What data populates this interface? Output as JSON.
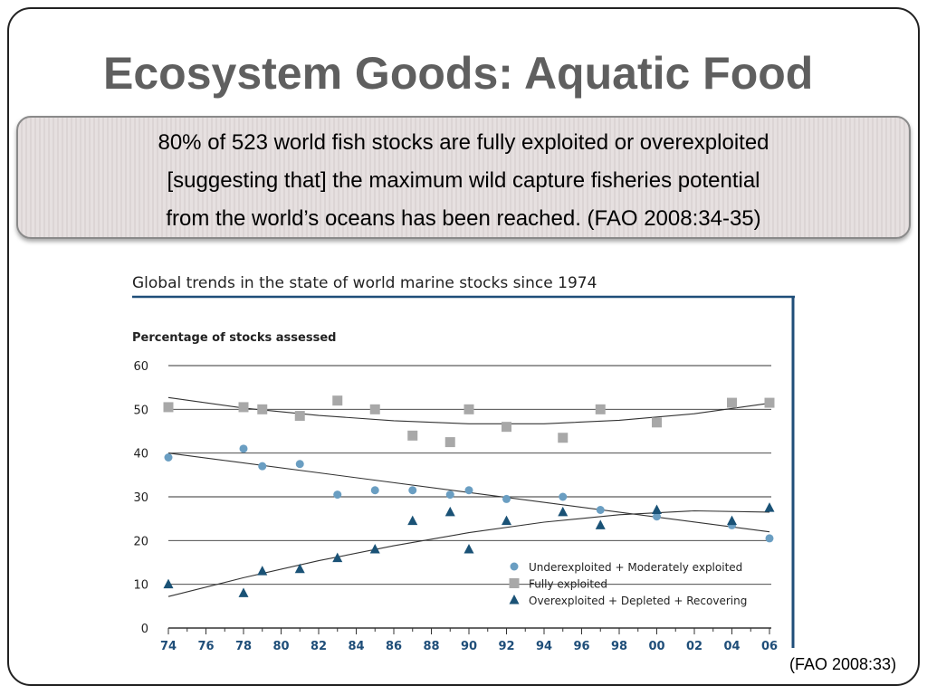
{
  "slide": {
    "title": "Ecosystem Goods: Aquatic Food",
    "quote_lines": [
      "80% of 523 world fish stocks are fully exploited or overexploited",
      "[suggesting that] the maximum wild capture fisheries potential",
      "from the world’s oceans has been reached. (FAO 2008:34-35)"
    ],
    "source_note": "(FAO 2008:33)"
  },
  "colors": {
    "title": "#5f5f5f",
    "axis_tick_labels": "#1f4e79",
    "frame_accent": "#1f4e79",
    "underexploited": "#6a9ec2",
    "fully": "#a8a8a8",
    "overexploited": "#1a5276"
  },
  "chart_data": {
    "type": "scatter",
    "title": "Global trends in the state of world marine stocks since 1974",
    "ylabel": "Percentage of stocks assessed",
    "xlabel": "",
    "xlim": [
      1974,
      2006
    ],
    "ylim": [
      0,
      60
    ],
    "yticks": [
      0,
      10,
      20,
      30,
      40,
      50,
      60
    ],
    "xtick_labels": [
      "74",
      "76",
      "78",
      "80",
      "82",
      "84",
      "86",
      "88",
      "90",
      "92",
      "94",
      "96",
      "98",
      "00",
      "02",
      "04",
      "06"
    ],
    "grid": true,
    "legend_position": "bottom-right",
    "series": [
      {
        "name": "Underexploited + Moderately exploited",
        "marker": "circle",
        "x": [
          1974,
          1978,
          1979,
          1981,
          1983,
          1985,
          1987,
          1989,
          1990,
          1992,
          1995,
          1997,
          2000,
          2004,
          2006
        ],
        "y": [
          39,
          41,
          37,
          37.5,
          30.5,
          31.5,
          31.5,
          30.5,
          31.5,
          29.5,
          30,
          27,
          25.5,
          23.5,
          20.5
        ],
        "trend": [
          [
            1974,
            40
          ],
          [
            2006,
            22
          ]
        ]
      },
      {
        "name": "Fully exploited",
        "marker": "square",
        "x": [
          1974,
          1978,
          1979,
          1981,
          1983,
          1985,
          1987,
          1989,
          1990,
          1992,
          1995,
          1997,
          2000,
          2004,
          2006
        ],
        "y": [
          50.5,
          50.5,
          50,
          48.5,
          52,
          50,
          44,
          42.5,
          50,
          46,
          43.5,
          50,
          47,
          51.5,
          51.5
        ],
        "trend": [
          [
            1974,
            52.7
          ],
          [
            1978,
            50.3
          ],
          [
            1982,
            48.6
          ],
          [
            1986,
            47.4
          ],
          [
            1990,
            46.7
          ],
          [
            1994,
            46.7
          ],
          [
            1998,
            47.5
          ],
          [
            2002,
            49.0
          ],
          [
            2006,
            51.4
          ]
        ]
      },
      {
        "name": "Overexploited + Depleted + Recovering",
        "marker": "triangle",
        "x": [
          1974,
          1978,
          1979,
          1981,
          1983,
          1985,
          1987,
          1989,
          1990,
          1992,
          1995,
          1997,
          2000,
          2004,
          2006
        ],
        "y": [
          10,
          8,
          13,
          13.5,
          16,
          18,
          24.5,
          26.5,
          18,
          24.5,
          26.5,
          23.5,
          27,
          24.5,
          27.5
        ],
        "trend": [
          [
            1974,
            7.2
          ],
          [
            1978,
            11.5
          ],
          [
            1982,
            15.4
          ],
          [
            1986,
            18.8
          ],
          [
            1990,
            21.8
          ],
          [
            1994,
            24.2
          ],
          [
            1998,
            25.9
          ],
          [
            2002,
            26.8
          ],
          [
            2006,
            26.5
          ]
        ]
      }
    ]
  }
}
